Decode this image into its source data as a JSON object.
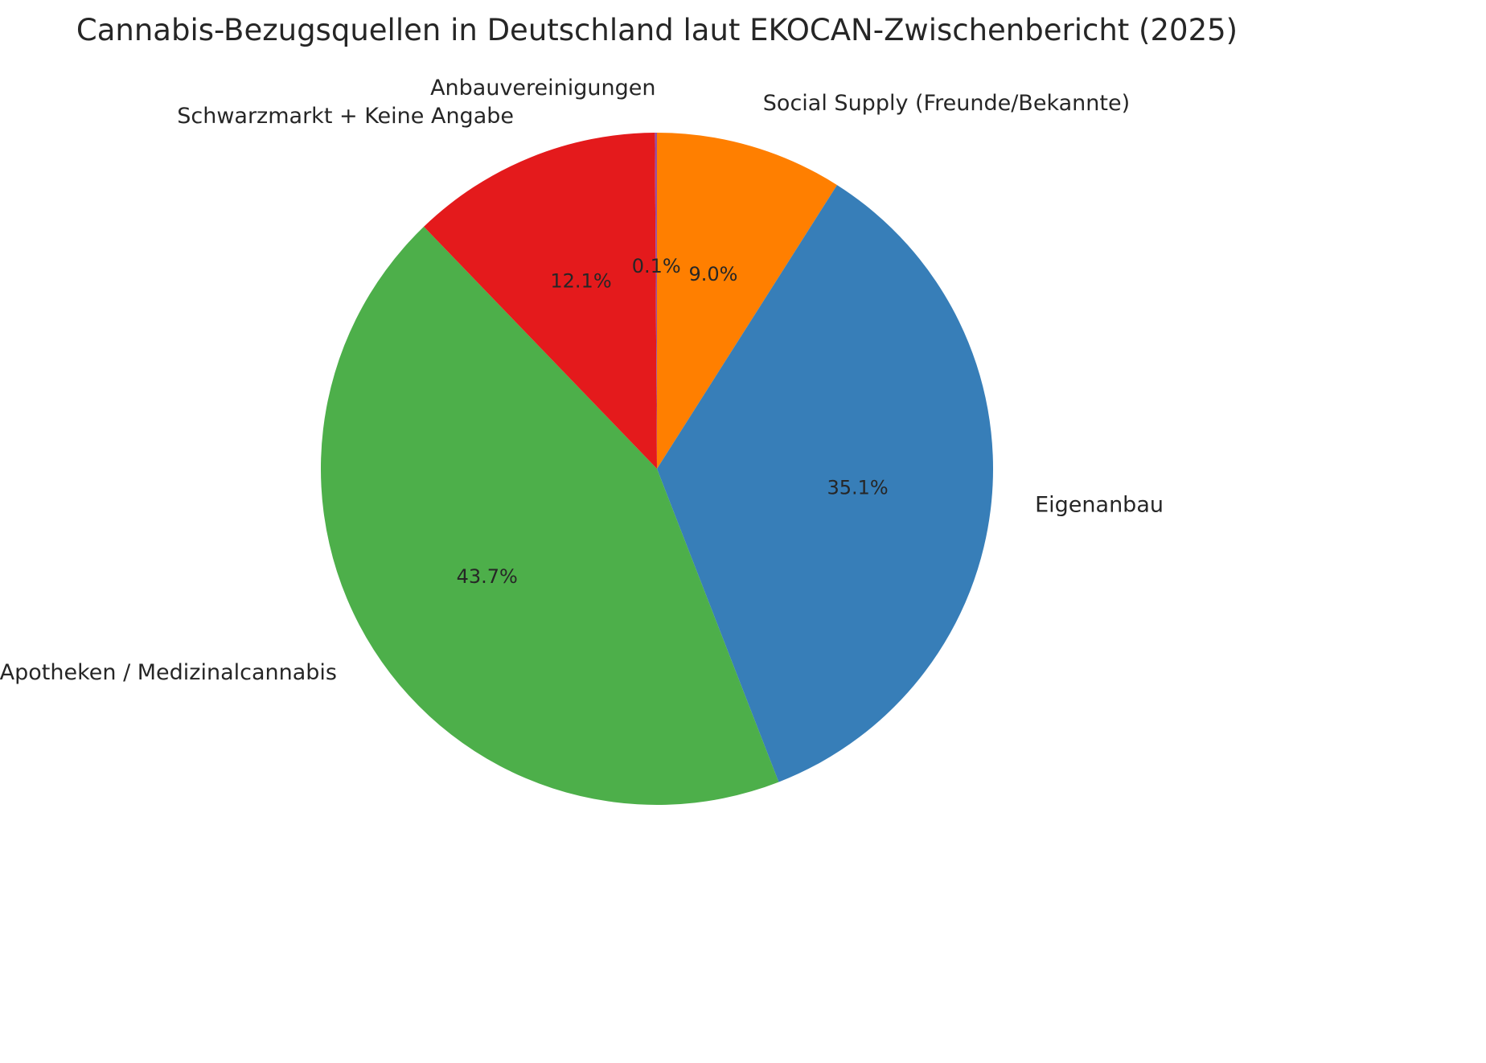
{
  "chart_data": {
    "type": "pie",
    "title": "Cannabis-Bezugsquellen in Deutschland laut EKOCAN-Zwischenbericht (2025)",
    "slices": [
      {
        "label": "Social Supply (Freunde/Bekannte)",
        "value": 9.0,
        "percent_label": "9.0%",
        "color": "#ff7f00"
      },
      {
        "label": "Eigenanbau",
        "value": 35.1,
        "percent_label": "35.1%",
        "color": "#377eb8"
      },
      {
        "label": "Apotheken / Medizinalcannabis",
        "value": 43.7,
        "percent_label": "43.7%",
        "color": "#4daf4a"
      },
      {
        "label": "Schwarzmarkt + Keine Angabe",
        "value": 12.1,
        "percent_label": "12.1%",
        "color": "#e41a1c"
      },
      {
        "label": "Anbauvereinigungen",
        "value": 0.1,
        "percent_label": "0.1%",
        "color": "#984ea3"
      }
    ],
    "start_angle_deg": 0,
    "direction": "clockwise",
    "legend": "none",
    "background_color": "#ffffff",
    "text_color": "#262626"
  }
}
